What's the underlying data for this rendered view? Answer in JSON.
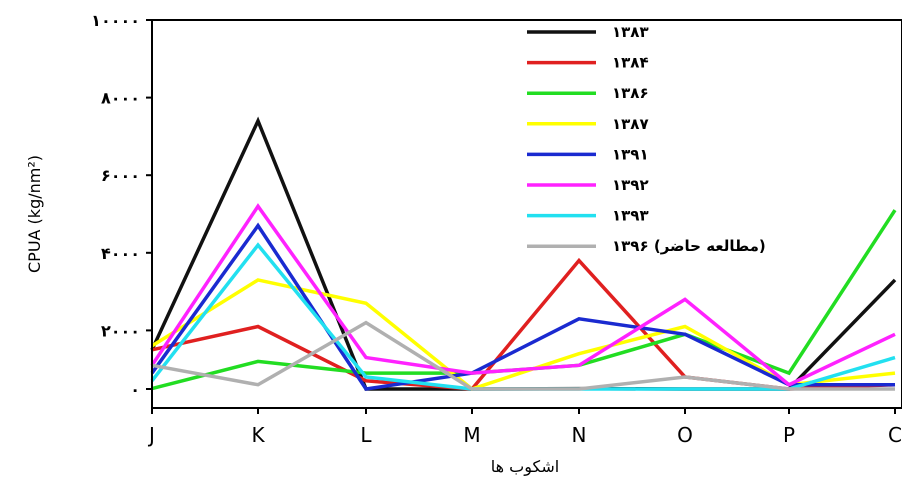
{
  "chart_data": {
    "type": "line",
    "categories": [
      "J",
      "K",
      "L",
      "M",
      "N",
      "O",
      "P",
      "C"
    ],
    "ylabel": "CPUA (kg/nm²)",
    "xlabel": "اشکوب ها",
    "ylim": [
      0,
      10000
    ],
    "yticks": [
      0,
      2000,
      4000,
      6000,
      8000,
      10000
    ],
    "ytick_labels": [
      "۰",
      "۲۰۰۰",
      "۴۰۰۰",
      "۶۰۰۰",
      "۸۰۰۰",
      "۱۰۰۰۰"
    ],
    "legend_position": "top-right",
    "grid": false,
    "series": [
      {
        "name": "۱۳۸۳",
        "color": "#111111",
        "values": [
          1500,
          7400,
          200,
          300,
          500,
          200,
          0,
          3300
        ]
      },
      {
        "name": "۱۳۸۴",
        "color": "#e02020",
        "values": [
          1500,
          2100,
          700,
          400,
          3800,
          800,
          0,
          600
        ]
      },
      {
        "name": "۱۳۸۶",
        "color": "#22dd22",
        "values": [
          500,
          1200,
          900,
          900,
          1100,
          1900,
          900,
          5100
        ]
      },
      {
        "name": "۱۳۸۷",
        "color": "#ffff00",
        "values": [
          1600,
          3300,
          2700,
          400,
          1400,
          2100,
          600,
          900
        ]
      },
      {
        "name": "۱۳۹۱",
        "color": "#1a2ad0",
        "values": [
          900,
          4700,
          200,
          900,
          2300,
          1900,
          600,
          600
        ]
      },
      {
        "name": "۱۳۹۲",
        "color": "#ff22ff",
        "values": [
          1100,
          5200,
          1300,
          900,
          1100,
          2800,
          600,
          1900
        ]
      },
      {
        "name": "۱۳۹۳",
        "color": "#22e0f0",
        "values": [
          700,
          4200,
          800,
          400,
          200,
          0,
          0,
          1300
        ]
      },
      {
        "name": "۱۳۹۶ (مطالعه حاضر)",
        "color": "#b0b0b0",
        "values": [
          1100,
          600,
          2200,
          200,
          200,
          800,
          0,
          200
        ]
      }
    ]
  }
}
